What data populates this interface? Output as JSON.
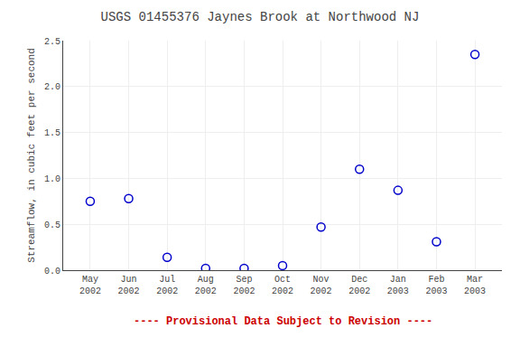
{
  "chart_data": {
    "type": "scatter",
    "title": "USGS 01455376 Jaynes Brook at Northwood NJ",
    "y_label": "Streamflow, in cubic feet per second",
    "annotations": [
      {
        "text": "---- Provisional Data Subject to Revision ----",
        "color": "#cc0000"
      }
    ],
    "categories": [
      "May\n2002",
      "Jun\n2002",
      "Jul\n2002",
      "Aug\n2002",
      "Sep\n2002",
      "Oct\n2002",
      "Nov\n2002",
      "Dec\n2002",
      "Jan\n2003",
      "Feb\n2003",
      "Mar\n2003"
    ],
    "values": [
      0.75,
      0.78,
      0.14,
      0.02,
      0.02,
      0.05,
      0.47,
      1.1,
      0.87,
      0.31,
      2.35
    ],
    "color": "#0000cc",
    "marker": "circle-open",
    "ylim": [
      0,
      2.5
    ],
    "yticks": [
      {
        "value": 0.0,
        "label": "0.0"
      },
      0.5,
      {
        "value": 1.0,
        "label": "1.0"
      },
      1.5,
      {
        "value": 2.0,
        "label": "2.0"
      },
      2.5
    ],
    "grid": true
  }
}
